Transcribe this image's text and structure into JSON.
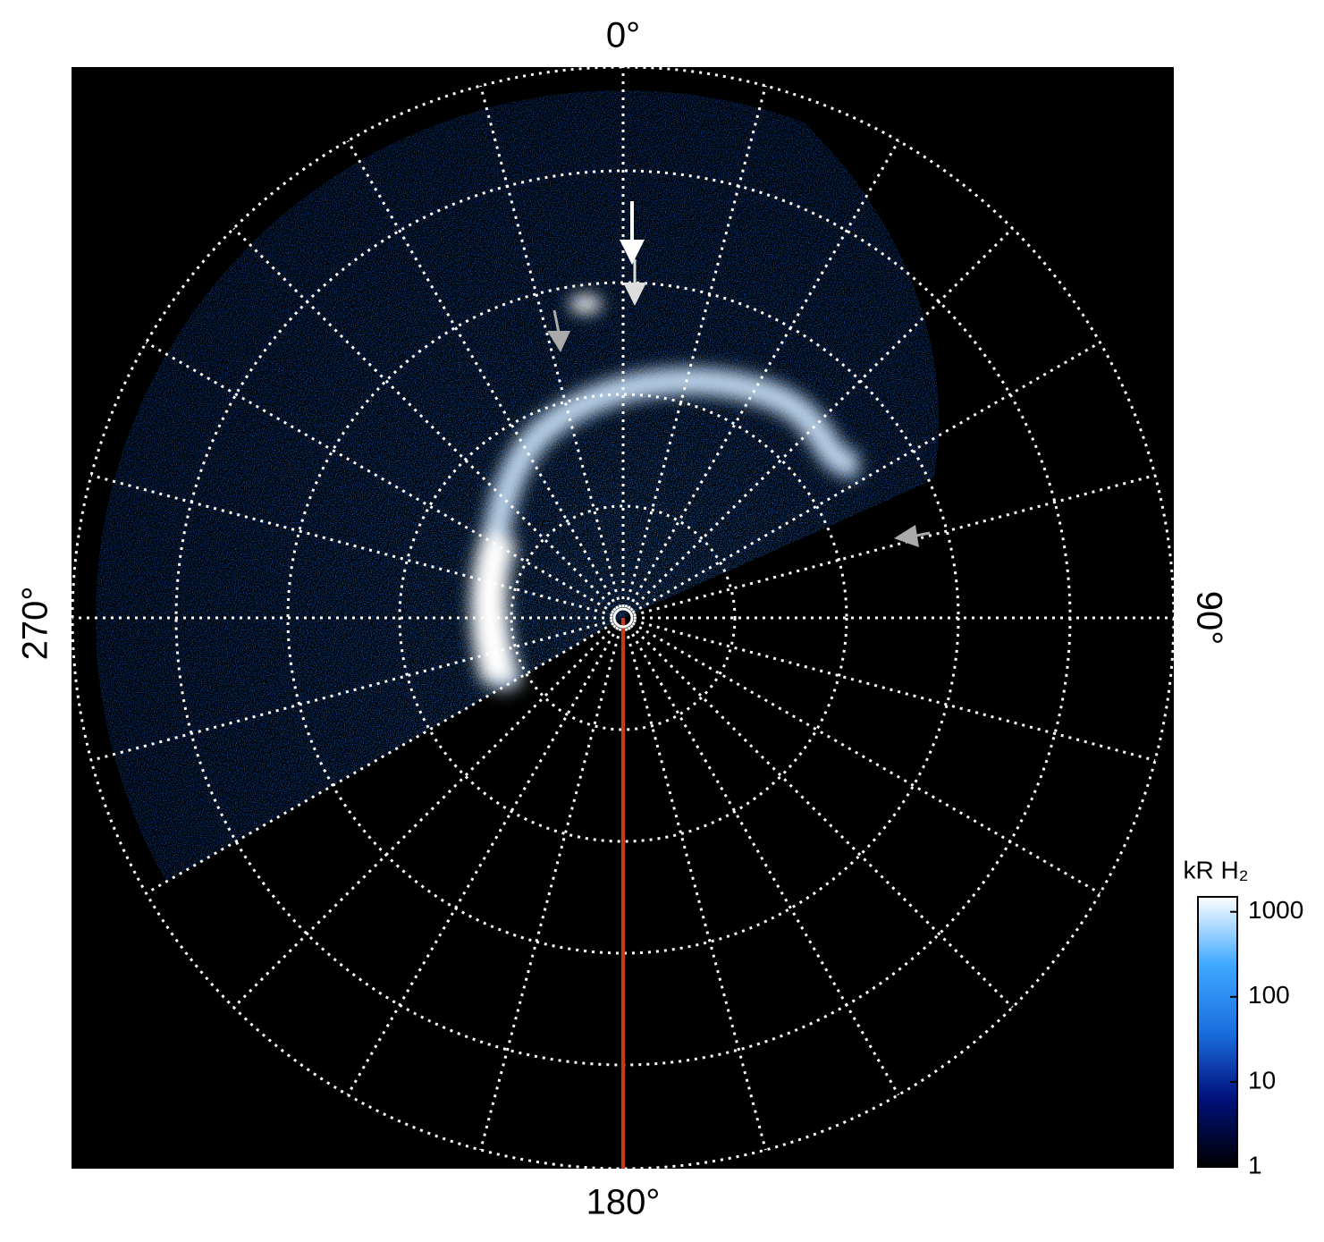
{
  "chart_data": {
    "type": "polar-image",
    "angle_labels": {
      "top": "0°",
      "right": "90°",
      "bottom": "180°",
      "left": "270°"
    },
    "colorbar": {
      "label": "kR H₂",
      "log_scale": true,
      "clim": [
        1,
        1500
      ],
      "ticks": [
        1,
        10,
        100,
        1000
      ],
      "colors": [
        "#000000",
        "#00107a",
        "#1a6fe0",
        "#3fa8ff",
        "#ffffff"
      ]
    }
  }
}
